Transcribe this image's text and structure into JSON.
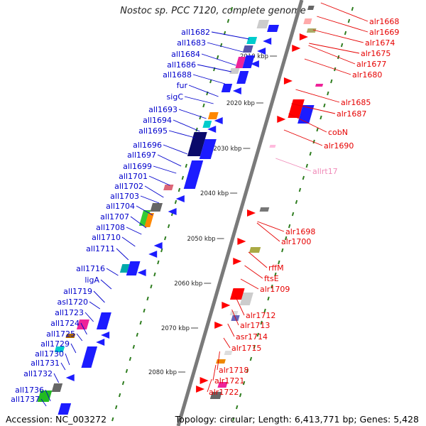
{
  "map": {
    "title": "Nostoc sp. PCC 7120, complete genome",
    "accession": "Accession: NC_003272",
    "topology": "Topology: circular; Length: 6,413,771 bp; Genes: 5,428",
    "colors": {
      "left_label": "#0000cc",
      "right_label": "#e60000",
      "rna_label": "#f08ab8",
      "tick": "#2e7d1f",
      "backbone": "#7a7a7a"
    },
    "scale_ticks": [
      "2010 kbp",
      "2020 kbp",
      "2030 kbp",
      "2040 kbp",
      "2050 kbp",
      "2060 kbp",
      "2070 kbp",
      "2080 kbp"
    ],
    "left_genes": [
      "all1682",
      "all1683",
      "all1684",
      "all1686",
      "all1688",
      "fur",
      "sigC",
      "all1693",
      "all1694",
      "all1695",
      "all1696",
      "all1697",
      "all1699",
      "all1701",
      "all1702",
      "all1703",
      "all1704",
      "all1707",
      "all1708",
      "all1710",
      "all1711",
      "all1716",
      "ligA",
      "all1719",
      "asl1720",
      "all1723",
      "all1724",
      "all1725",
      "all1729",
      "all1730",
      "all1731",
      "all1732",
      "all1736",
      "all1737"
    ],
    "right_genes": [
      "alr1668",
      "alr1669",
      "alr1674",
      "alr1675",
      "alr1677",
      "alr1680",
      "alr1685",
      "alr1687",
      "cobN",
      "alr1690",
      "allrt17",
      "alr1698",
      "alr1700",
      "rffM",
      "ftsE",
      "alr1709",
      "alr1712",
      "alr1713",
      "asr1714",
      "alr1715",
      "alr1718",
      "alr1721",
      "alr1722"
    ]
  }
}
